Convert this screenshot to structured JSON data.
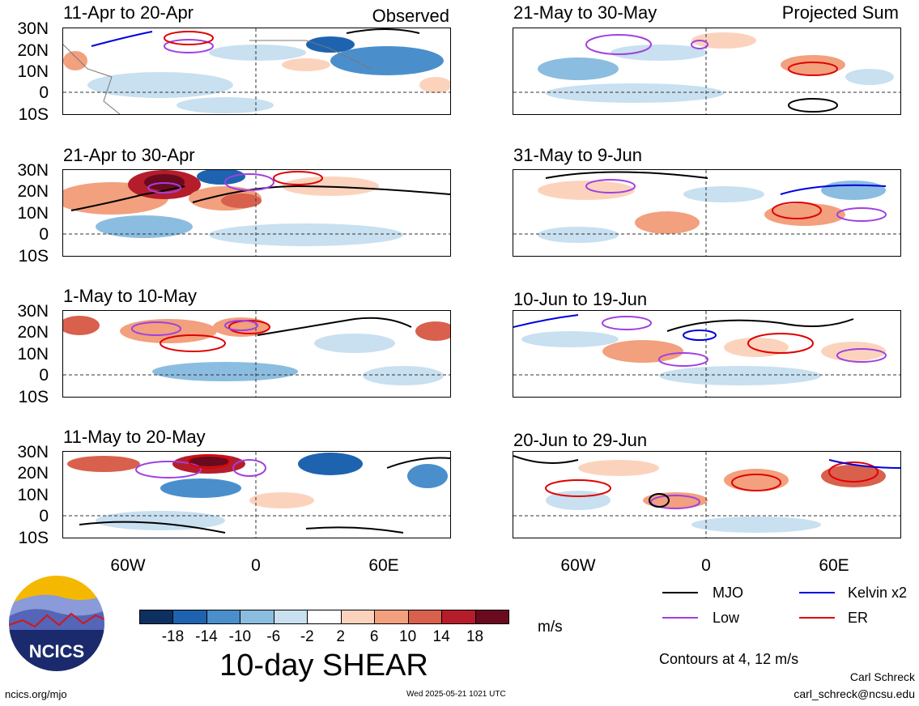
{
  "headers": {
    "observed": "Observed",
    "projected": "Projected Sum"
  },
  "panels": [
    {
      "title": "11-Apr to 20-Apr"
    },
    {
      "title": "21-Apr to 30-Apr"
    },
    {
      "title": "1-May to 10-May"
    },
    {
      "title": "11-May to 20-May"
    },
    {
      "title": "21-May to 30-May"
    },
    {
      "title": "31-May to 9-Jun"
    },
    {
      "title": "10-Jun to 19-Jun"
    },
    {
      "title": "20-Jun to 29-Jun"
    }
  ],
  "y_labels": [
    "30N",
    "20N",
    "10N",
    "0",
    "10S"
  ],
  "x_labels": [
    "60W",
    "0",
    "60E"
  ],
  "colorbar": {
    "ticks": [
      "-18",
      "-14",
      "-10",
      "-6",
      "-2",
      "2",
      "6",
      "10",
      "14",
      "18"
    ],
    "colors": [
      "#0d3060",
      "#1e63b0",
      "#4a8fcc",
      "#8bbde0",
      "#c8e0f0",
      "#ffffff",
      "#fbd3bd",
      "#f2a07e",
      "#d9604c",
      "#b51d2a",
      "#6a0a1e"
    ],
    "units": "m/s",
    "title": "10-day SHEAR"
  },
  "legend": {
    "items": [
      {
        "label": "MJO",
        "color": "#000000"
      },
      {
        "label": "Kelvin x2",
        "color": "#0000dd"
      },
      {
        "label": "Low",
        "color": "#a040e0"
      },
      {
        "label": "ER",
        "color": "#e00000"
      }
    ],
    "note": "Contours at 4, 12 m/s"
  },
  "logo": {
    "text": "NCICS"
  },
  "footer": {
    "url": "ncics.org/mjo",
    "timestamp": "Wed 2025-05-21 1021 UTC",
    "author": "Carl Schreck",
    "email": "carl_schreck@ncsu.edu"
  }
}
